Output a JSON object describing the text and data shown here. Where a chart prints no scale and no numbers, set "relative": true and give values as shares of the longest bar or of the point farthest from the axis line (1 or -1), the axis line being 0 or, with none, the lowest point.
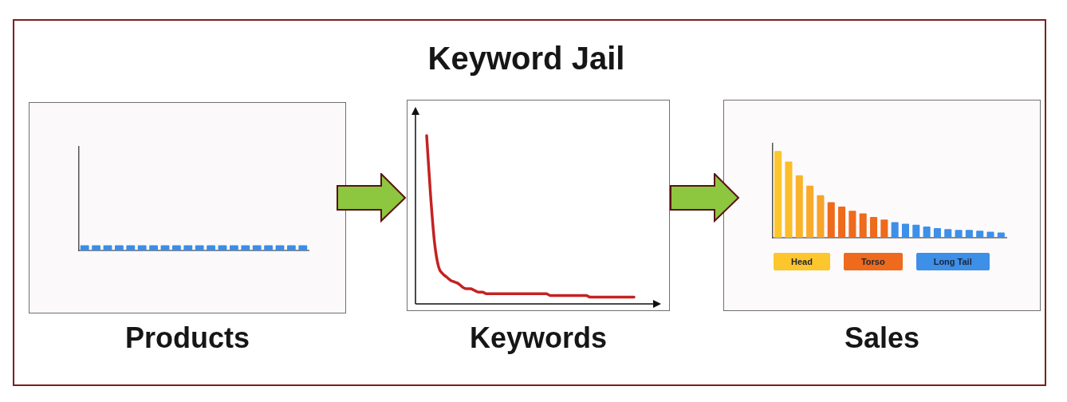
{
  "chart_data": [
    {
      "type": "bar",
      "xlabel": "Products",
      "categories": [
        null,
        null,
        null,
        null,
        null,
        null,
        null,
        null,
        null,
        null,
        null,
        null,
        null,
        null,
        null,
        null,
        null,
        null,
        null,
        null
      ],
      "values": [
        1,
        1,
        1,
        1,
        1,
        1,
        1,
        1,
        1,
        1,
        1,
        1,
        1,
        1,
        1,
        1,
        1,
        1,
        1,
        1
      ],
      "color": "#3b8de6",
      "relative": true
    },
    {
      "type": "line",
      "title": "Keyword Jail",
      "xlabel": "Keywords",
      "categories": [
        null,
        null,
        null,
        null,
        null,
        null,
        null,
        null,
        null,
        null,
        null,
        null,
        null,
        null,
        null,
        null,
        null,
        null,
        null,
        null,
        null,
        null,
        null,
        null,
        null,
        null,
        null,
        null,
        null,
        null,
        null,
        null,
        null,
        null,
        null,
        null,
        null,
        null,
        null,
        null,
        null,
        null,
        null,
        null,
        null,
        null,
        null,
        null,
        null,
        null,
        null,
        null,
        null
      ],
      "values": [
        1,
        0.64,
        0.36,
        0.22,
        0.18,
        0.16,
        0.14,
        0.13,
        0.12,
        0.1,
        0.09,
        0.09,
        0.08,
        0.07,
        0.07,
        0.06,
        0.06,
        0.06,
        0.06,
        0.06,
        0.06,
        0.06,
        0.06,
        0.06,
        0.06,
        0.06,
        0.06,
        0.06,
        0.06,
        0.06,
        0.06,
        0.05,
        0.05,
        0.05,
        0.05,
        0.05,
        0.05,
        0.05,
        0.05,
        0.05,
        0.05,
        0.04,
        0.04,
        0.04,
        0.04,
        0.04,
        0.04,
        0.04,
        0.04,
        0.04,
        0.04,
        0.04,
        0.04
      ],
      "color": "#c42222",
      "relative": true,
      "marker": "none"
    },
    {
      "type": "bar",
      "xlabel": "Sales",
      "categories": [
        null,
        null,
        null,
        null,
        null,
        null,
        null,
        null,
        null,
        null,
        null,
        null,
        null,
        null,
        null,
        null,
        null,
        null,
        null,
        null,
        null,
        null
      ],
      "series": [
        {
          "name": "Head",
          "colors": [
            "#fcc62c",
            "#fbbd2a",
            "#f9b32b",
            "#f8ab2b",
            "#f6a42c",
            null,
            null,
            null,
            null,
            null,
            null,
            null,
            null,
            null,
            null,
            null,
            null,
            null,
            null,
            null,
            null,
            null
          ],
          "values": [
            1,
            0.88,
            0.72,
            0.6,
            0.49,
            null,
            null,
            null,
            null,
            null,
            null,
            null,
            null,
            null,
            null,
            null,
            null,
            null,
            null,
            null,
            null,
            null
          ]
        },
        {
          "name": "Torso",
          "color": "#ee6a1c",
          "values": [
            null,
            null,
            null,
            null,
            null,
            0.41,
            0.36,
            0.31,
            0.28,
            0.24,
            0.21,
            null,
            null,
            null,
            null,
            null,
            null,
            null,
            null,
            null,
            null,
            null
          ]
        },
        {
          "name": "Long Tail",
          "color": "#3d8fe8",
          "values": [
            null,
            null,
            null,
            null,
            null,
            null,
            null,
            null,
            null,
            null,
            null,
            0.18,
            0.16,
            0.15,
            0.13,
            0.11,
            0.1,
            0.09,
            0.09,
            0.08,
            0.07,
            0.06
          ]
        }
      ],
      "stacked": true,
      "relative": true,
      "legend": "bottom"
    }
  ]
}
